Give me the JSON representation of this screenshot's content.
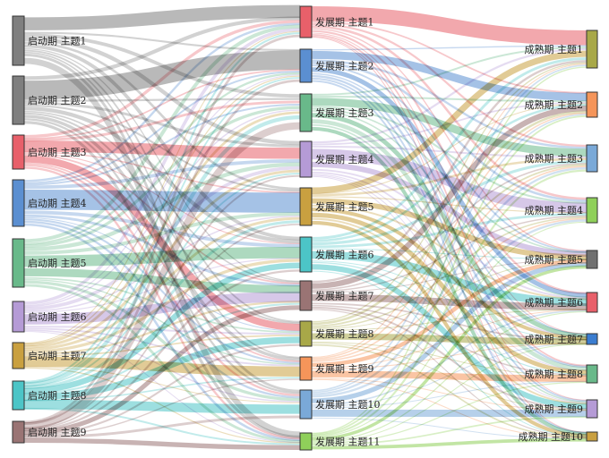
{
  "stages": [
    {
      "name": "启动期",
      "nodes": [
        {
          "label": "启动期  主题1",
          "color": "#7f7f7f"
        },
        {
          "label": "启动期  主题2",
          "color": "#7f7f7f"
        },
        {
          "label": "启动期  主题3",
          "color": "#e8606a"
        },
        {
          "label": "启动期  主题4",
          "color": "#5b8fd1"
        },
        {
          "label": "启动期  主题5",
          "color": "#69b98a"
        },
        {
          "label": "启动期  主题6",
          "color": "#b59bd6"
        },
        {
          "label": "启动期  主题7",
          "color": "#c9a040"
        },
        {
          "label": "启动期  主题8",
          "color": "#4cc5c7"
        },
        {
          "label": "启动期  主题9",
          "color": "#9a7474"
        }
      ]
    },
    {
      "name": "发展期",
      "nodes": [
        {
          "label": "发展期  主题1",
          "color": "#e8606a"
        },
        {
          "label": "发展期  主题2",
          "color": "#5b8fd1"
        },
        {
          "label": "发展期  主题3",
          "color": "#69b98a"
        },
        {
          "label": "发展期  主题4",
          "color": "#b59bd6"
        },
        {
          "label": "发展期  主题5",
          "color": "#c9a040"
        },
        {
          "label": "发展期  主题6",
          "color": "#4cc5c7"
        },
        {
          "label": "发展期  主题7",
          "color": "#9a7474"
        },
        {
          "label": "发展期  主题8",
          "color": "#a8a848"
        },
        {
          "label": "发展期  主题9",
          "color": "#f5955a"
        },
        {
          "label": "发展期  主题10",
          "color": "#7aa9d8"
        },
        {
          "label": "发展期  主题11",
          "color": "#8fd05a"
        }
      ]
    },
    {
      "name": "成熟期",
      "nodes": [
        {
          "label": "成熟期  主题1",
          "color": "#a8a848"
        },
        {
          "label": "成熟期  主题2",
          "color": "#f5955a"
        },
        {
          "label": "成熟期  主题3",
          "color": "#7aa9d8"
        },
        {
          "label": "成熟期  主题4",
          "color": "#8fd05a"
        },
        {
          "label": "成熟期  主题5",
          "color": "#707070"
        },
        {
          "label": "成熟期  主题6",
          "color": "#e8606a"
        },
        {
          "label": "成熟期  主题7",
          "color": "#3b7dd0"
        },
        {
          "label": "成熟期  主题8",
          "color": "#69b98a"
        },
        {
          "label": "成熟期  主题9",
          "color": "#b59bd6"
        },
        {
          "label": "成熟期  主题10",
          "color": "#c9a040"
        }
      ]
    }
  ]
}
